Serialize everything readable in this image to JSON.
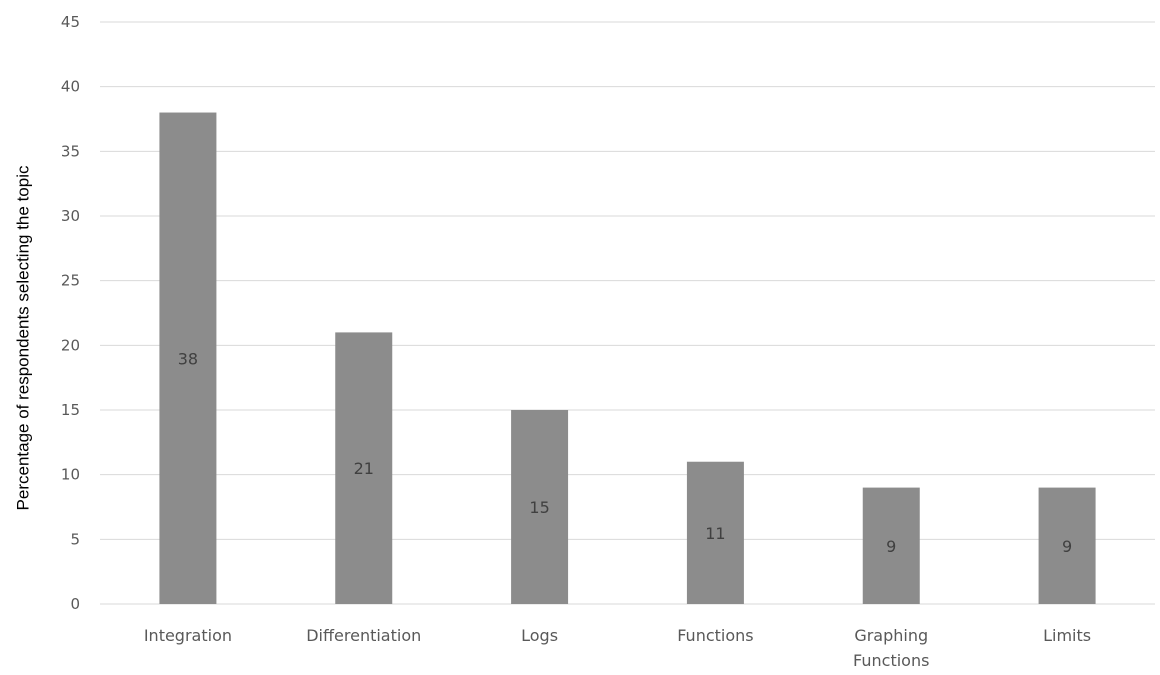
{
  "chart_data": {
    "type": "bar",
    "title": "",
    "xlabel": "",
    "ylabel": "Percentage of respondents selecting the topic",
    "categories": [
      "Integration",
      "Differentiation",
      "Logs",
      "Functions",
      "Graphing Functions",
      "Limits"
    ],
    "category_lines": [
      [
        "Integration"
      ],
      [
        "Differentiation"
      ],
      [
        "Logs"
      ],
      [
        "Functions"
      ],
      [
        "Graphing",
        "Functions"
      ],
      [
        "Limits"
      ]
    ],
    "values": [
      38,
      21,
      15,
      11,
      9,
      9
    ],
    "data_labels": [
      "38",
      "21",
      "15",
      "11",
      "9",
      "9"
    ],
    "ylim": [
      0,
      45
    ],
    "yticks": [
      0,
      5,
      10,
      15,
      20,
      25,
      30,
      35,
      40,
      45
    ],
    "grid": true,
    "legend": "none",
    "bar_color": "#8c8c8c"
  }
}
